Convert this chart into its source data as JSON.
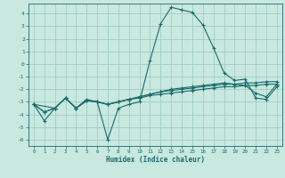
{
  "xlabel": "Humidex (Indice chaleur)",
  "xlim": [
    -0.5,
    23.5
  ],
  "ylim": [
    -6.5,
    4.8
  ],
  "yticks": [
    -6,
    -5,
    -4,
    -3,
    -2,
    -1,
    0,
    1,
    2,
    3,
    4
  ],
  "xticks": [
    0,
    1,
    2,
    3,
    4,
    5,
    6,
    7,
    8,
    9,
    10,
    11,
    12,
    13,
    14,
    15,
    16,
    17,
    18,
    19,
    20,
    21,
    22,
    23
  ],
  "background_color": "#c8e8e0",
  "grid_color": "#9ac8be",
  "line_color": "#1a6b6b",
  "series1": [
    [
      0,
      -3.2
    ],
    [
      1,
      -4.5
    ],
    [
      2,
      -3.5
    ],
    [
      3,
      -2.7
    ],
    [
      4,
      -3.5
    ],
    [
      5,
      -2.8
    ],
    [
      6,
      -3.0
    ],
    [
      7,
      -6.0
    ],
    [
      8,
      -3.5
    ],
    [
      9,
      -3.2
    ],
    [
      10,
      -3.0
    ],
    [
      11,
      0.3
    ],
    [
      12,
      3.2
    ],
    [
      13,
      4.5
    ],
    [
      14,
      4.3
    ],
    [
      15,
      4.1
    ],
    [
      16,
      3.1
    ],
    [
      17,
      1.3
    ],
    [
      18,
      -0.7
    ],
    [
      19,
      -1.3
    ],
    [
      20,
      -1.2
    ],
    [
      21,
      -2.7
    ],
    [
      22,
      -2.8
    ],
    [
      23,
      -1.8
    ]
  ],
  "series2": [
    [
      0,
      -3.2
    ],
    [
      1,
      -3.8
    ],
    [
      2,
      -3.5
    ],
    [
      3,
      -2.7
    ],
    [
      4,
      -3.5
    ],
    [
      5,
      -2.9
    ],
    [
      6,
      -3.0
    ],
    [
      7,
      -3.2
    ],
    [
      8,
      -3.0
    ],
    [
      9,
      -2.8
    ],
    [
      10,
      -2.7
    ],
    [
      11,
      -2.5
    ],
    [
      12,
      -2.4
    ],
    [
      13,
      -2.3
    ],
    [
      14,
      -2.2
    ],
    [
      15,
      -2.1
    ],
    [
      16,
      -2.0
    ],
    [
      17,
      -1.9
    ],
    [
      18,
      -1.8
    ],
    [
      19,
      -1.8
    ],
    [
      20,
      -1.7
    ],
    [
      21,
      -1.7
    ],
    [
      22,
      -1.6
    ],
    [
      23,
      -1.6
    ]
  ],
  "series3": [
    [
      0,
      -3.2
    ],
    [
      1,
      -3.8
    ],
    [
      2,
      -3.5
    ],
    [
      3,
      -2.7
    ],
    [
      4,
      -3.5
    ],
    [
      5,
      -2.9
    ],
    [
      6,
      -3.0
    ],
    [
      7,
      -3.2
    ],
    [
      8,
      -3.0
    ],
    [
      9,
      -2.8
    ],
    [
      10,
      -2.6
    ],
    [
      11,
      -2.4
    ],
    [
      12,
      -2.2
    ],
    [
      13,
      -2.0
    ],
    [
      14,
      -1.9
    ],
    [
      15,
      -1.8
    ],
    [
      16,
      -1.7
    ],
    [
      17,
      -1.6
    ],
    [
      18,
      -1.5
    ],
    [
      19,
      -1.6
    ],
    [
      20,
      -1.7
    ],
    [
      21,
      -2.3
    ],
    [
      22,
      -2.6
    ],
    [
      23,
      -1.6
    ]
  ],
  "series4": [
    [
      0,
      -3.2
    ],
    [
      2,
      -3.5
    ],
    [
      3,
      -2.7
    ],
    [
      4,
      -3.5
    ],
    [
      5,
      -2.9
    ],
    [
      6,
      -3.0
    ],
    [
      7,
      -3.2
    ],
    [
      8,
      -3.0
    ],
    [
      9,
      -2.8
    ],
    [
      10,
      -2.6
    ],
    [
      11,
      -2.4
    ],
    [
      12,
      -2.2
    ],
    [
      13,
      -2.1
    ],
    [
      14,
      -2.0
    ],
    [
      15,
      -1.9
    ],
    [
      16,
      -1.8
    ],
    [
      17,
      -1.7
    ],
    [
      18,
      -1.6
    ],
    [
      19,
      -1.6
    ],
    [
      20,
      -1.5
    ],
    [
      21,
      -1.5
    ],
    [
      22,
      -1.4
    ],
    [
      23,
      -1.4
    ]
  ]
}
